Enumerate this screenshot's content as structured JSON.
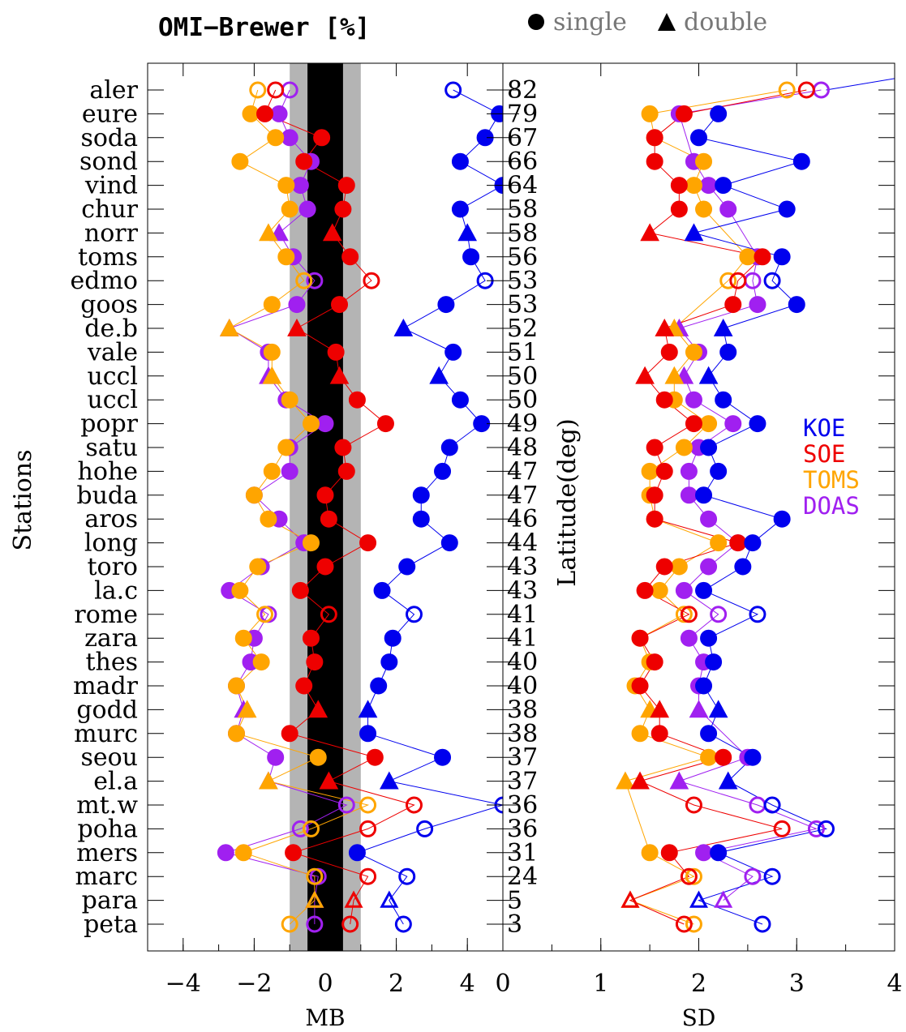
{
  "chart_data": {
    "type": "scatter",
    "title": "OMI−Brewer [%]",
    "marker_legend": [
      {
        "shape": "circle",
        "label": "single"
      },
      {
        "shape": "triangle",
        "label": "double"
      }
    ],
    "y_axis_label": "Stations",
    "latitude_axis_label": "Latitude(deg)",
    "series_colors": {
      "KOE": "#0000ee",
      "SOE": "#ee0000",
      "TOMS": "#ffa500",
      "DOAS": "#a020f0"
    },
    "series_names": [
      "KOE",
      "SOE",
      "TOMS",
      "DOAS"
    ],
    "stations": [
      {
        "name": "aler",
        "lat": "82",
        "marker": "circle",
        "fill": "open",
        "mb": {
          "KOE": 3.6,
          "SOE": -1.4,
          "TOMS": -1.9,
          "DOAS": -1.0
        },
        "sd": {
          "KOE": null,
          "SOE": 3.1,
          "TOMS": 2.9,
          "DOAS": 3.25
        }
      },
      {
        "name": "eure",
        "lat": "79",
        "marker": "circle",
        "fill": "filled",
        "mb": {
          "KOE": 4.9,
          "SOE": -1.7,
          "TOMS": -2.1,
          "DOAS": -1.3
        },
        "sd": {
          "KOE": 2.2,
          "SOE": 1.85,
          "TOMS": 1.5,
          "DOAS": 1.8
        }
      },
      {
        "name": "soda",
        "lat": "67",
        "marker": "circle",
        "fill": "filled",
        "mb": {
          "KOE": 4.5,
          "SOE": -0.1,
          "TOMS": -1.4,
          "DOAS": -1.0
        },
        "sd": {
          "KOE": 2.0,
          "SOE": 1.55,
          "TOMS": 1.55,
          "DOAS": null
        }
      },
      {
        "name": "sond",
        "lat": "66",
        "marker": "circle",
        "fill": "filled",
        "mb": {
          "KOE": 3.8,
          "SOE": -0.6,
          "TOMS": -2.4,
          "DOAS": -0.4
        },
        "sd": {
          "KOE": 3.05,
          "SOE": 1.55,
          "TOMS": 2.05,
          "DOAS": 1.95
        }
      },
      {
        "name": "vind",
        "lat": "64",
        "marker": "circle",
        "fill": "filled",
        "mb": {
          "KOE": 5.0,
          "SOE": 0.6,
          "TOMS": -1.1,
          "DOAS": -0.7
        },
        "sd": {
          "KOE": 2.25,
          "SOE": 1.8,
          "TOMS": 1.95,
          "DOAS": 2.1
        }
      },
      {
        "name": "chur",
        "lat": "58",
        "marker": "circle",
        "fill": "filled",
        "mb": {
          "KOE": 3.8,
          "SOE": 0.5,
          "TOMS": -1.0,
          "DOAS": -0.5
        },
        "sd": {
          "KOE": 2.9,
          "SOE": 1.8,
          "TOMS": 2.05,
          "DOAS": 2.3
        }
      },
      {
        "name": "norr",
        "lat": "58",
        "marker": "triangle",
        "fill": "filled",
        "mb": {
          "KOE": 4.0,
          "SOE": 0.2,
          "TOMS": -1.6,
          "DOAS": -1.3
        },
        "sd": {
          "KOE": 1.95,
          "SOE": 1.5,
          "TOMS": null,
          "DOAS": null
        }
      },
      {
        "name": "toms",
        "lat": "56",
        "marker": "circle",
        "fill": "filled",
        "mb": {
          "KOE": 4.1,
          "SOE": 0.7,
          "TOMS": -1.1,
          "DOAS": -0.9
        },
        "sd": {
          "KOE": 2.85,
          "SOE": 2.65,
          "TOMS": 2.5,
          "DOAS": 2.6
        }
      },
      {
        "name": "edmo",
        "lat": "53",
        "marker": "circle",
        "fill": "open",
        "mb": {
          "KOE": 4.5,
          "SOE": 1.3,
          "TOMS": -0.6,
          "DOAS": -0.3
        },
        "sd": {
          "KOE": 2.75,
          "SOE": 2.4,
          "TOMS": 2.3,
          "DOAS": 2.55
        }
      },
      {
        "name": "goos",
        "lat": "53",
        "marker": "circle",
        "fill": "filled",
        "mb": {
          "KOE": 3.4,
          "SOE": 0.4,
          "TOMS": -1.5,
          "DOAS": -0.8
        },
        "sd": {
          "KOE": 3.0,
          "SOE": 2.35,
          "TOMS": null,
          "DOAS": 2.6
        }
      },
      {
        "name": "de.b",
        "lat": "52",
        "marker": "triangle",
        "fill": "filled",
        "mb": {
          "KOE": 2.2,
          "SOE": -0.8,
          "TOMS": -2.7,
          "DOAS": -2.7
        },
        "sd": {
          "KOE": 2.25,
          "SOE": 1.65,
          "TOMS": 1.75,
          "DOAS": 1.8
        }
      },
      {
        "name": "vale",
        "lat": "51",
        "marker": "circle",
        "fill": "filled",
        "mb": {
          "KOE": 3.6,
          "SOE": 0.3,
          "TOMS": -1.5,
          "DOAS": -1.6
        },
        "sd": {
          "KOE": 2.3,
          "SOE": 1.7,
          "TOMS": 1.95,
          "DOAS": 2.0
        }
      },
      {
        "name": "uccl",
        "lat": "50",
        "marker": "triangle",
        "fill": "filled",
        "mb": {
          "KOE": 3.2,
          "SOE": 0.4,
          "TOMS": -1.5,
          "DOAS": -1.6
        },
        "sd": {
          "KOE": 2.1,
          "SOE": 1.45,
          "TOMS": 1.75,
          "DOAS": 1.85
        }
      },
      {
        "name": "uccl",
        "lat": "50",
        "marker": "circle",
        "fill": "filled",
        "mb": {
          "KOE": 3.8,
          "SOE": 0.9,
          "TOMS": -1.0,
          "DOAS": -1.1
        },
        "sd": {
          "KOE": 2.25,
          "SOE": 1.65,
          "TOMS": 1.75,
          "DOAS": 1.95
        }
      },
      {
        "name": "popr",
        "lat": "49",
        "marker": "circle",
        "fill": "filled",
        "mb": {
          "KOE": 4.4,
          "SOE": 1.7,
          "TOMS": -0.4,
          "DOAS": 0.0
        },
        "sd": {
          "KOE": 2.6,
          "SOE": 1.95,
          "TOMS": 2.1,
          "DOAS": 2.35
        }
      },
      {
        "name": "satu",
        "lat": "48",
        "marker": "circle",
        "fill": "filled",
        "mb": {
          "KOE": 3.5,
          "SOE": 0.5,
          "TOMS": -1.1,
          "DOAS": -1.0
        },
        "sd": {
          "KOE": 2.1,
          "SOE": 1.55,
          "TOMS": 1.85,
          "DOAS": 2.0
        }
      },
      {
        "name": "hohe",
        "lat": "47",
        "marker": "circle",
        "fill": "filled",
        "mb": {
          "KOE": 3.3,
          "SOE": 0.6,
          "TOMS": -1.5,
          "DOAS": -1.0
        },
        "sd": {
          "KOE": 2.2,
          "SOE": 1.65,
          "TOMS": 1.5,
          "DOAS": 1.9
        }
      },
      {
        "name": "buda",
        "lat": "47",
        "marker": "circle",
        "fill": "filled",
        "mb": {
          "KOE": 2.7,
          "SOE": 0.0,
          "TOMS": -2.0,
          "DOAS": -2.0
        },
        "sd": {
          "KOE": 2.05,
          "SOE": 1.55,
          "TOMS": 1.5,
          "DOAS": 1.9
        }
      },
      {
        "name": "aros",
        "lat": "46",
        "marker": "circle",
        "fill": "filled",
        "mb": {
          "KOE": 2.7,
          "SOE": 0.1,
          "TOMS": -1.6,
          "DOAS": -1.3
        },
        "sd": {
          "KOE": 2.85,
          "SOE": 1.55,
          "TOMS": 1.55,
          "DOAS": 2.1
        }
      },
      {
        "name": "long",
        "lat": "44",
        "marker": "circle",
        "fill": "filled",
        "mb": {
          "KOE": 3.5,
          "SOE": 1.2,
          "TOMS": -0.4,
          "DOAS": -0.6
        },
        "sd": {
          "KOE": 2.55,
          "SOE": 2.4,
          "TOMS": 2.2,
          "DOAS": 2.4
        }
      },
      {
        "name": "toro",
        "lat": "43",
        "marker": "circle",
        "fill": "filled",
        "mb": {
          "KOE": 2.3,
          "SOE": 0.0,
          "TOMS": -1.9,
          "DOAS": -1.8
        },
        "sd": {
          "KOE": 2.45,
          "SOE": 1.65,
          "TOMS": 1.8,
          "DOAS": 2.1
        }
      },
      {
        "name": "la.c",
        "lat": "43",
        "marker": "circle",
        "fill": "filled",
        "mb": {
          "KOE": 1.6,
          "SOE": -0.7,
          "TOMS": -2.4,
          "DOAS": -2.7
        },
        "sd": {
          "KOE": 2.05,
          "SOE": 1.45,
          "TOMS": 1.6,
          "DOAS": 1.85
        }
      },
      {
        "name": "rome",
        "lat": "41",
        "marker": "circle",
        "fill": "open",
        "mb": {
          "KOE": 2.5,
          "SOE": 0.1,
          "TOMS": -1.7,
          "DOAS": -1.6
        },
        "sd": {
          "KOE": 2.6,
          "SOE": 1.9,
          "TOMS": 1.85,
          "DOAS": 2.2
        }
      },
      {
        "name": "zara",
        "lat": "41",
        "marker": "circle",
        "fill": "filled",
        "mb": {
          "KOE": 1.9,
          "SOE": -0.4,
          "TOMS": -2.3,
          "DOAS": -2.0
        },
        "sd": {
          "KOE": 2.1,
          "SOE": 1.4,
          "TOMS": 1.4,
          "DOAS": 1.9
        }
      },
      {
        "name": "thes",
        "lat": "40",
        "marker": "circle",
        "fill": "filled",
        "mb": {
          "KOE": 1.8,
          "SOE": -0.3,
          "TOMS": -1.8,
          "DOAS": -2.1
        },
        "sd": {
          "KOE": 2.15,
          "SOE": 1.55,
          "TOMS": 1.5,
          "DOAS": 2.05
        }
      },
      {
        "name": "madr",
        "lat": "40",
        "marker": "circle",
        "fill": "filled",
        "mb": {
          "KOE": 1.5,
          "SOE": -0.6,
          "TOMS": -2.5,
          "DOAS": -2.5
        },
        "sd": {
          "KOE": 2.05,
          "SOE": 1.4,
          "TOMS": 1.35,
          "DOAS": 2.0
        }
      },
      {
        "name": "godd",
        "lat": "38",
        "marker": "triangle",
        "fill": "filled",
        "mb": {
          "KOE": 1.2,
          "SOE": -0.2,
          "TOMS": -2.2,
          "DOAS": -2.3
        },
        "sd": {
          "KOE": 2.2,
          "SOE": 1.6,
          "TOMS": 1.5,
          "DOAS": 2.0
        }
      },
      {
        "name": "murc",
        "lat": "38",
        "marker": "circle",
        "fill": "filled",
        "mb": {
          "KOE": 1.2,
          "SOE": -1.0,
          "TOMS": -2.5,
          "DOAS": -2.5
        },
        "sd": {
          "KOE": 2.1,
          "SOE": 1.6,
          "TOMS": 1.4,
          "DOAS": null
        }
      },
      {
        "name": "seou",
        "lat": "37",
        "marker": "circle",
        "fill": "filled",
        "mb": {
          "KOE": 3.3,
          "SOE": 1.4,
          "TOMS": -0.2,
          "DOAS": -1.4
        },
        "sd": {
          "KOE": 2.55,
          "SOE": 2.25,
          "TOMS": 2.1,
          "DOAS": 2.5
        }
      },
      {
        "name": "el.a",
        "lat": "37",
        "marker": "triangle",
        "fill": "filled",
        "mb": {
          "KOE": 1.8,
          "SOE": 0.1,
          "TOMS": -1.6,
          "DOAS": -1.6
        },
        "sd": {
          "KOE": 2.3,
          "SOE": 1.4,
          "TOMS": 1.25,
          "DOAS": 1.8
        }
      },
      {
        "name": "mt.w",
        "lat": "36",
        "marker": "circle",
        "fill": "open",
        "mb": {
          "KOE": 5.0,
          "SOE": 2.5,
          "TOMS": 1.2,
          "DOAS": 0.6
        },
        "sd": {
          "KOE": 2.75,
          "SOE": 1.95,
          "TOMS": null,
          "DOAS": 2.6
        }
      },
      {
        "name": "poha",
        "lat": "36",
        "marker": "circle",
        "fill": "open",
        "mb": {
          "KOE": 2.8,
          "SOE": 1.2,
          "TOMS": -0.4,
          "DOAS": -0.7
        },
        "sd": {
          "KOE": 3.3,
          "SOE": 2.85,
          "TOMS": null,
          "DOAS": 3.2
        }
      },
      {
        "name": "mers",
        "lat": "31",
        "marker": "circle",
        "fill": "filled",
        "mb": {
          "KOE": 0.9,
          "SOE": -0.9,
          "TOMS": -2.3,
          "DOAS": -2.8
        },
        "sd": {
          "KOE": 2.2,
          "SOE": 1.7,
          "TOMS": 1.5,
          "DOAS": 2.05
        }
      },
      {
        "name": "marc",
        "lat": "24",
        "marker": "circle",
        "fill": "open",
        "mb": {
          "KOE": 2.3,
          "SOE": 1.2,
          "TOMS": -0.3,
          "DOAS": -0.2
        },
        "sd": {
          "KOE": 2.75,
          "SOE": 1.9,
          "TOMS": 1.95,
          "DOAS": 2.55
        }
      },
      {
        "name": "para",
        "lat": "5",
        "marker": "triangle",
        "fill": "open",
        "mb": {
          "KOE": 1.8,
          "SOE": 0.8,
          "TOMS": -0.3,
          "DOAS": -0.3
        },
        "sd": {
          "KOE": 2.0,
          "SOE": 1.3,
          "TOMS": 1.3,
          "DOAS": 2.25
        }
      },
      {
        "name": "peta",
        "lat": "3",
        "marker": "circle",
        "fill": "open",
        "mb": {
          "KOE": 2.2,
          "SOE": 0.7,
          "TOMS": -1.0,
          "DOAS": -0.3
        },
        "sd": {
          "KOE": 2.65,
          "SOE": 1.85,
          "TOMS": 1.95,
          "DOAS": null
        }
      }
    ],
    "panels": [
      {
        "id": "mb",
        "xlabel": "MB",
        "xlim": [
          -5,
          5
        ],
        "xticks": [
          "−4",
          "−2",
          "0",
          "2",
          "4"
        ],
        "xtick_values": [
          -4,
          -2,
          0,
          2,
          4
        ],
        "bands": [
          {
            "range": [
              -1,
              1
            ],
            "color": "#b4b4b4"
          },
          {
            "range": [
              -0.5,
              0.5
            ],
            "color": "#000000"
          }
        ]
      },
      {
        "id": "sd",
        "xlabel": "SD",
        "xlim": [
          0,
          4
        ],
        "xticks": [
          "0",
          "1",
          "2",
          "3",
          "4"
        ],
        "xtick_values": [
          0,
          1,
          2,
          3,
          4
        ]
      }
    ],
    "overflow_segments": [
      {
        "panel": "sd",
        "series": "KOE",
        "from_row": 0,
        "from_value": 3.3,
        "to_row": 0.2,
        "to_value": 4.0
      }
    ],
    "grid": "horizontal"
  }
}
